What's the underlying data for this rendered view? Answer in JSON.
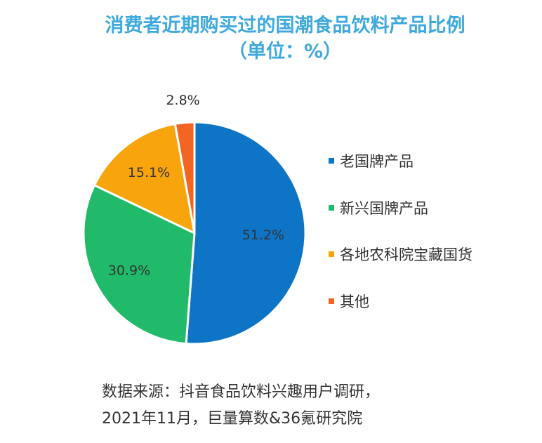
{
  "chart_data": {
    "type": "pie",
    "title": "消费者近期购买过的国潮食品饮料产品比例",
    "subtitle": "（单位：%）",
    "slices": [
      {
        "label": "老国牌产品",
        "value": 51.2,
        "value_label": "51.2%",
        "color": "#0e74c6"
      },
      {
        "label": "新兴国牌产品",
        "value": 30.9,
        "value_label": "30.9%",
        "color": "#21ba6a"
      },
      {
        "label": "各地农科院宝藏国货",
        "value": 15.1,
        "value_label": "15.1%",
        "color": "#f8a40c"
      },
      {
        "label": "其他",
        "value": 2.8,
        "value_label": "2.8%",
        "color": "#f26522"
      }
    ],
    "legend_position": "right"
  },
  "source": {
    "line1": "数据来源：抖音食品饮料兴趣用户调研，",
    "line2": "2021年11月，巨量算数&36氪研究院"
  }
}
